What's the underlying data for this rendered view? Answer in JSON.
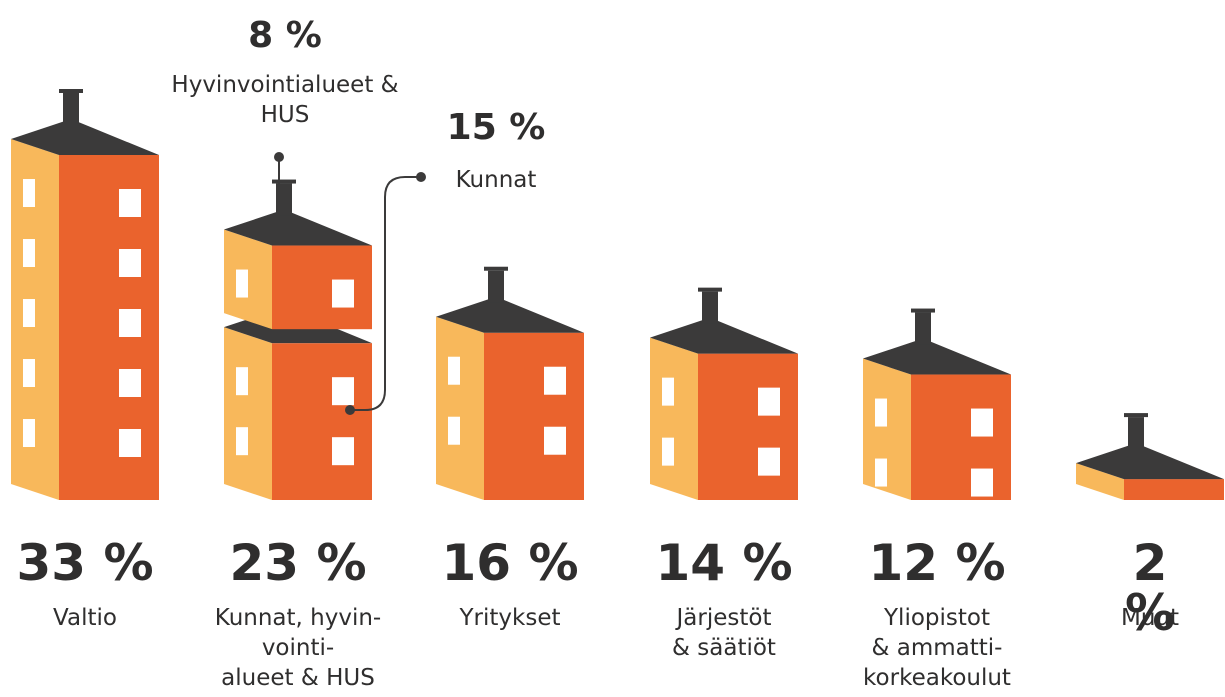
{
  "chart_data": {
    "type": "building",
    "categories": [
      "Valtio",
      "Kunnat, hyvin-\nvointi-\nalueet & HUS",
      "Yritykset",
      "Järjestöt\n& säätiöt",
      "Yliopistot\n& ammatti-\nkorkeakoulut",
      "Muut"
    ],
    "values": [
      33,
      23,
      16,
      14,
      12,
      2
    ],
    "value_labels": [
      "33 %",
      "23 %",
      "16 %",
      "14 %",
      "12 %",
      "2 %"
    ],
    "breakdown_of": 1,
    "breakdown": [
      {
        "name": "Hyvinvointialueet &\nHUS",
        "value": 8,
        "value_label": "8 %"
      },
      {
        "name": "Kunnat",
        "value": 15,
        "value_label": "15 %"
      }
    ],
    "colors": {
      "left": "#f8b85b",
      "right": "#ea632d",
      "roof": "#3b3a3a"
    }
  }
}
